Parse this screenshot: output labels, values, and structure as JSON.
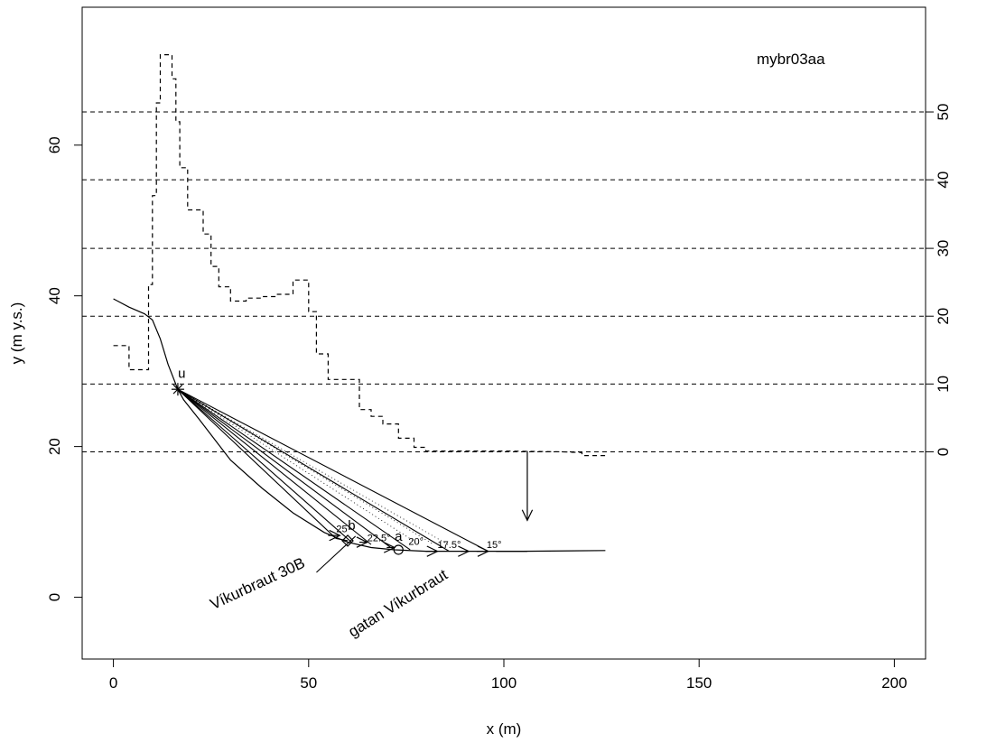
{
  "chart_data": {
    "type": "line",
    "title": "mybr03aa",
    "xlabel": "x (m)",
    "ylabel": "y (m y.s.)",
    "xlim": [
      -8,
      208
    ],
    "ylim": [
      -8.2,
      78.3
    ],
    "xticks": [
      0,
      50,
      100,
      150,
      200
    ],
    "yticks": [
      0,
      20,
      40,
      60
    ],
    "right_axis": {
      "ticks": [
        0,
        10,
        20,
        30,
        40,
        50
      ],
      "tick_y_positions": [
        19.3,
        28.3,
        37.3,
        46.3,
        55.4,
        64.4
      ]
    },
    "grid": "horizontal dashed lines at right-axis ticks",
    "series": [
      {
        "style": "solid",
        "points": [
          [
            0,
            39.6
          ],
          [
            4,
            38.5
          ],
          [
            8,
            37.6
          ],
          [
            10,
            36.8
          ],
          [
            12,
            34.3
          ],
          [
            14,
            30.9
          ],
          [
            16.5,
            27.6
          ],
          [
            18,
            26.2
          ],
          [
            22,
            23.6
          ],
          [
            26,
            20.9
          ],
          [
            30,
            18.2
          ],
          [
            38,
            14.5
          ],
          [
            46,
            11.2
          ],
          [
            54,
            8.6
          ],
          [
            60,
            7.3
          ],
          [
            66,
            6.6
          ],
          [
            72,
            6.3
          ],
          [
            80,
            6.1
          ],
          [
            105,
            6.1
          ],
          [
            126,
            6.2
          ]
        ]
      },
      {
        "style": "dashed-step",
        "points": [
          [
            0,
            33.4
          ],
          [
            4,
            33.4
          ],
          [
            4,
            30.2
          ],
          [
            9,
            30.2
          ],
          [
            9,
            41.5
          ],
          [
            10,
            41.5
          ],
          [
            10,
            53.3
          ],
          [
            11,
            53.3
          ],
          [
            11,
            65.6
          ],
          [
            12,
            65.6
          ],
          [
            12,
            72.0
          ],
          [
            15,
            72.0
          ],
          [
            15,
            68.8
          ],
          [
            16,
            68.8
          ],
          [
            16,
            63.1
          ],
          [
            17,
            63.1
          ],
          [
            17,
            57.0
          ],
          [
            19,
            57.0
          ],
          [
            19,
            51.4
          ],
          [
            23,
            51.4
          ],
          [
            23,
            48.2
          ],
          [
            25,
            48.2
          ],
          [
            25,
            43.9
          ],
          [
            27,
            43.9
          ],
          [
            27,
            41.2
          ],
          [
            30,
            41.2
          ],
          [
            30,
            39.3
          ],
          [
            34,
            39.3
          ],
          [
            34,
            39.7
          ],
          [
            38,
            39.7
          ],
          [
            38,
            39.9
          ],
          [
            42,
            39.9
          ],
          [
            42,
            40.2
          ],
          [
            46,
            40.2
          ],
          [
            46,
            42.1
          ],
          [
            50,
            42.1
          ],
          [
            50,
            37.9
          ],
          [
            52,
            37.9
          ],
          [
            52,
            32.3
          ],
          [
            55,
            32.3
          ],
          [
            55,
            28.9
          ],
          [
            58,
            28.9
          ],
          [
            58,
            28.9
          ],
          [
            63,
            28.9
          ],
          [
            63,
            24.9
          ],
          [
            66,
            24.9
          ],
          [
            66,
            24.0
          ],
          [
            69,
            24.0
          ],
          [
            69,
            23.0
          ],
          [
            73,
            23.0
          ],
          [
            73,
            21.1
          ],
          [
            77,
            21.1
          ],
          [
            77,
            19.9
          ],
          [
            80,
            19.9
          ],
          [
            80,
            19.4
          ],
          [
            90,
            19.4
          ],
          [
            100,
            19.4
          ],
          [
            115,
            19.3
          ],
          [
            120,
            19.2
          ],
          [
            120,
            18.8
          ],
          [
            126,
            18.8
          ]
        ]
      }
    ],
    "rays": {
      "origin": [
        16.5,
        27.6
      ],
      "end_points": [
        [
          57,
          7.8
        ],
        [
          61,
          7.3
        ],
        [
          66,
          7.0
        ],
        [
          71,
          6.6
        ],
        [
          76,
          6.3
        ],
        [
          86,
          6.1
        ],
        [
          96,
          6.1
        ]
      ]
    },
    "dotted_lines": [
      [
        [
          16.5,
          27.6
        ],
        [
          78,
          7.1
        ]
      ],
      [
        [
          16.5,
          27.6
        ],
        [
          82,
          7.0
        ]
      ],
      [
        [
          16.5,
          27.6
        ],
        [
          86,
          6.9
        ]
      ]
    ],
    "arrows": [
      {
        "from": [
          55,
          8.2
        ],
        "to": [
          58,
          8.2
        ]
      },
      {
        "from": [
          63,
          7.3
        ],
        "to": [
          65,
          7.3
        ]
      },
      {
        "from": [
          70,
          6.6
        ],
        "to": [
          72,
          6.6
        ]
      },
      {
        "from": [
          80,
          6.1
        ],
        "to": [
          83,
          6.1
        ]
      },
      {
        "from": [
          89,
          6.1
        ],
        "to": [
          91,
          6.1
        ]
      },
      {
        "from": [
          93,
          6.1
        ],
        "to": [
          96,
          6.1
        ]
      },
      {
        "from": [
          106,
          19.4
        ],
        "to": [
          106,
          10.2
        ]
      }
    ],
    "leader_lines": [
      [
        [
          60,
          7.5
        ],
        [
          57,
          7.8
        ]
      ],
      [
        [
          52,
          3.3
        ],
        [
          62,
          8.1
        ]
      ],
      [
        [
          98,
          6.1
        ],
        [
          106,
          6.1
        ]
      ]
    ],
    "markers": [
      {
        "shape": "star",
        "at": [
          16.5,
          27.6
        ]
      },
      {
        "shape": "diamond",
        "at": [
          60,
          7.5
        ]
      },
      {
        "shape": "circle",
        "at": [
          73,
          6.3
        ]
      }
    ],
    "labels": [
      {
        "text": "u",
        "at": [
          17.5,
          29.6
        ],
        "rotate": 0,
        "size": "normal"
      },
      {
        "text": "b",
        "at": [
          61,
          9.4
        ],
        "rotate": 0,
        "size": "normal"
      },
      {
        "text": "a",
        "at": [
          73,
          8.0
        ],
        "rotate": 0,
        "size": "normal"
      },
      {
        "text": "25",
        "at": [
          58.5,
          9.0
        ],
        "rotate": 0,
        "size": "small"
      },
      {
        "text": "22.5°",
        "at": [
          68,
          7.8
        ],
        "rotate": 0,
        "size": "small"
      },
      {
        "text": "20°",
        "at": [
          77.5,
          7.3
        ],
        "rotate": 0,
        "size": "small"
      },
      {
        "text": "17.5°",
        "at": [
          86,
          6.9
        ],
        "rotate": 0,
        "size": "small"
      },
      {
        "text": "15°",
        "at": [
          97.5,
          6.9
        ],
        "rotate": 0,
        "size": "small"
      },
      {
        "text": "Víkurbraut 30B",
        "at": [
          37,
          1.7
        ],
        "rotate": -25,
        "size": "large"
      },
      {
        "text": "gatan Víkurbraut",
        "at": [
          73,
          -0.9
        ],
        "rotate": -32,
        "size": "large"
      }
    ]
  }
}
